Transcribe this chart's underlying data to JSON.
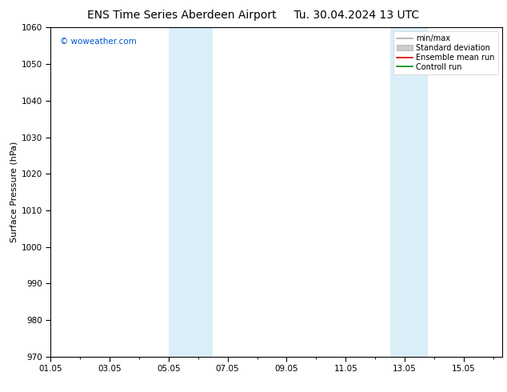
{
  "title": "ENS Time Series Aberdeen Airport",
  "title_right": "Tu. 30.04.2024 13 UTC",
  "ylabel": "Surface Pressure (hPa)",
  "ylim": [
    970,
    1060
  ],
  "yticks": [
    970,
    980,
    990,
    1000,
    1010,
    1020,
    1030,
    1040,
    1050,
    1060
  ],
  "xlabels": [
    "01.05",
    "03.05",
    "05.05",
    "07.05",
    "09.05",
    "11.05",
    "13.05",
    "15.05"
  ],
  "xtick_positions": [
    0,
    2,
    4,
    6,
    8,
    10,
    12,
    14
  ],
  "xlim": [
    0,
    15.3
  ],
  "shaded_bands": [
    {
      "xstart": 4.0,
      "xend": 5.5,
      "color": "#daeef8"
    },
    {
      "xstart": 11.5,
      "xend": 12.8,
      "color": "#daeef8"
    }
  ],
  "watermark": "© woweather.com",
  "watermark_color": "#0055cc",
  "background_color": "#ffffff",
  "plot_bg_color": "#ffffff",
  "border_color": "#000000",
  "legend_items": [
    {
      "label": "min/max",
      "type": "line",
      "color": "#aaaaaa",
      "lw": 1.2
    },
    {
      "label": "Standard deviation",
      "type": "patch",
      "color": "#cccccc"
    },
    {
      "label": "Ensemble mean run",
      "type": "line",
      "color": "#dd0000",
      "lw": 1.2
    },
    {
      "label": "Controll run",
      "type": "line",
      "color": "#008800",
      "lw": 1.2
    }
  ],
  "title_fontsize": 10,
  "ylabel_fontsize": 8,
  "tick_fontsize": 7.5,
  "legend_fontsize": 7,
  "watermark_fontsize": 7.5
}
